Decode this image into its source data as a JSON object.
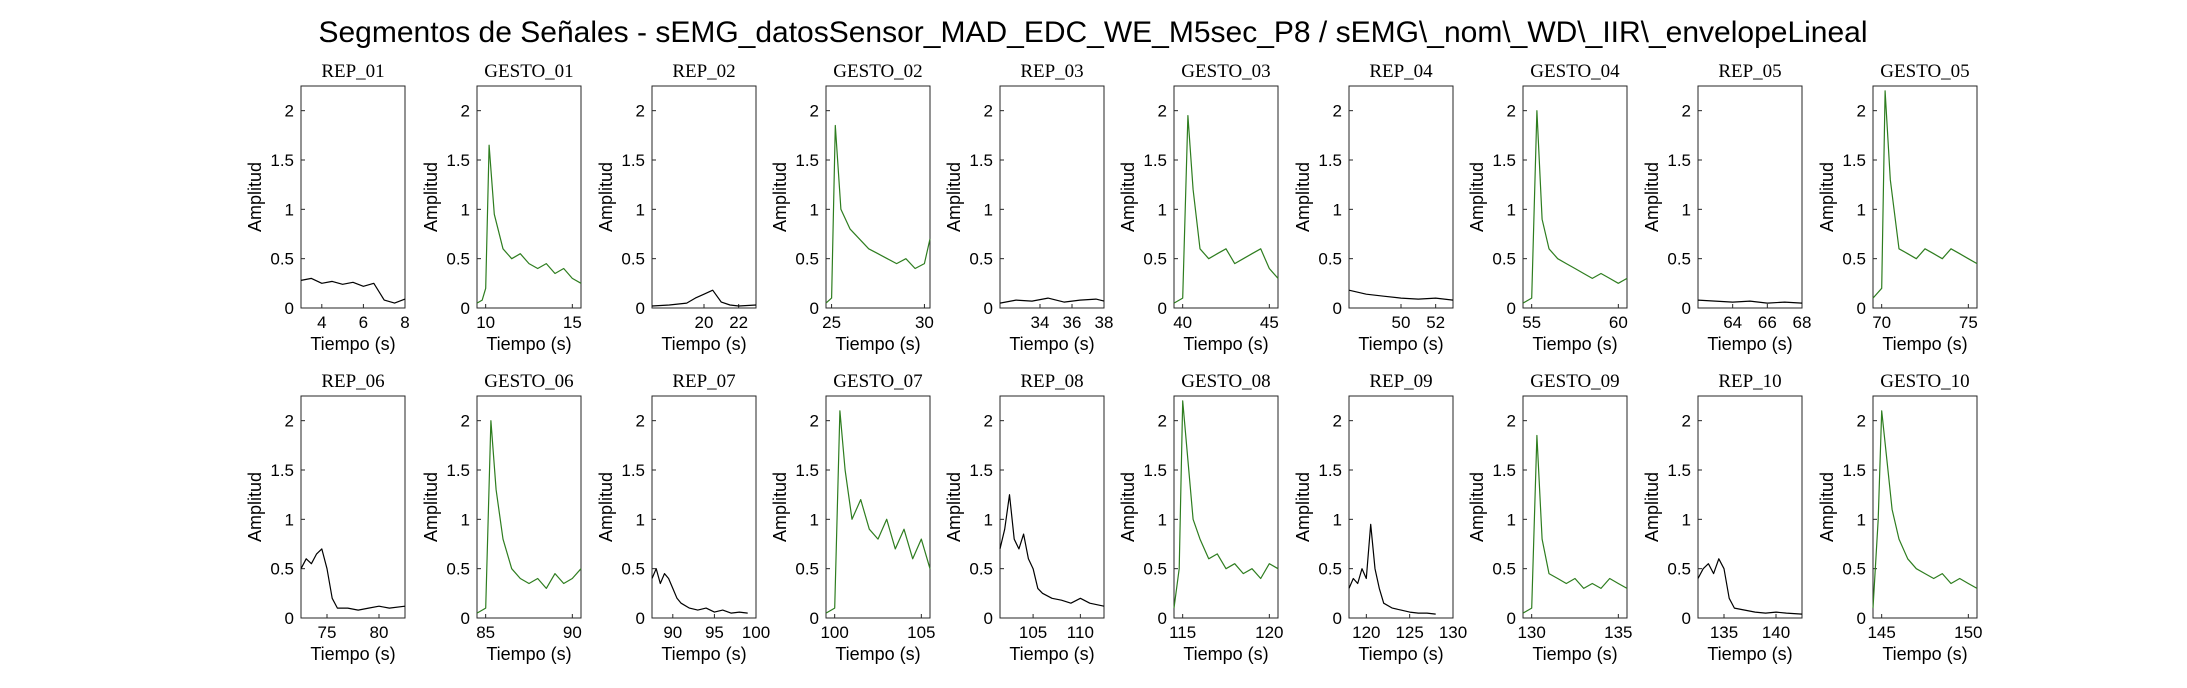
{
  "figure": {
    "title": "Segmentos de Señales - sEMG_datosSensor_MAD_EDC_WE_M5sec_P8 / sEMG\\_nom\\_WD\\_IIR\\_envelopeLineal"
  },
  "colors": {
    "rep": "#000000",
    "gesto": "#2e7d1f"
  },
  "chart_data": [
    {
      "type": "line",
      "title": "REP_01",
      "kind": "rep",
      "xlabel": "Tiempo (s)",
      "ylabel": "Amplitud",
      "xlim": [
        3,
        8
      ],
      "ylim": [
        0,
        2.25
      ],
      "xticks": [
        4,
        6,
        8
      ],
      "yticks": [
        0,
        0.5,
        1,
        1.5,
        2
      ],
      "ytick_labels": [
        "0",
        "0.5",
        "1",
        "1.5",
        "2"
      ],
      "x": [
        3,
        3.5,
        4,
        4.5,
        5,
        5.5,
        6,
        6.5,
        7,
        7.5,
        8
      ],
      "y": [
        0.28,
        0.3,
        0.25,
        0.27,
        0.24,
        0.26,
        0.22,
        0.25,
        0.08,
        0.05,
        0.09
      ]
    },
    {
      "type": "line",
      "title": "GESTO_01",
      "kind": "gesto",
      "xlabel": "Tiempo (s)",
      "ylabel": "Amplitud",
      "xlim": [
        9.5,
        15.5
      ],
      "ylim": [
        0,
        2.25
      ],
      "xticks": [
        10,
        15
      ],
      "yticks": [
        0,
        0.5,
        1,
        1.5,
        2
      ],
      "ytick_labels": [
        "0",
        "0.5",
        "1",
        "1.5",
        "2"
      ],
      "x": [
        9.5,
        9.8,
        10,
        10.2,
        10.5,
        11,
        11.5,
        12,
        12.5,
        13,
        13.5,
        14,
        14.5,
        15,
        15.5
      ],
      "y": [
        0.05,
        0.08,
        0.2,
        1.65,
        0.95,
        0.6,
        0.5,
        0.55,
        0.45,
        0.4,
        0.45,
        0.35,
        0.4,
        0.3,
        0.25
      ]
    },
    {
      "type": "line",
      "title": "REP_02",
      "kind": "rep",
      "xlabel": "Tiempo (s)",
      "ylabel": "Amplitud",
      "xlim": [
        17,
        23
      ],
      "ylim": [
        0,
        2.25
      ],
      "xticks": [
        20,
        22
      ],
      "yticks": [
        0,
        0.5,
        1,
        1.5,
        2
      ],
      "ytick_labels": [
        "0",
        "0.5",
        "1",
        "1.5",
        "2"
      ],
      "x": [
        17,
        18,
        19,
        19.5,
        20,
        20.5,
        21,
        21.5,
        22,
        23
      ],
      "y": [
        0.02,
        0.03,
        0.05,
        0.1,
        0.14,
        0.18,
        0.06,
        0.03,
        0.02,
        0.03
      ]
    },
    {
      "type": "line",
      "title": "GESTO_02",
      "kind": "gesto",
      "xlabel": "Tiempo (s)",
      "ylabel": "Amplitud",
      "xlim": [
        24.7,
        30.3
      ],
      "ylim": [
        0,
        2.25
      ],
      "xticks": [
        25,
        30
      ],
      "yticks": [
        0,
        0.5,
        1,
        1.5,
        2
      ],
      "ytick_labels": [
        "0",
        "0.5",
        "1",
        "1.5",
        "2"
      ],
      "x": [
        24.7,
        25,
        25.2,
        25.5,
        26,
        26.5,
        27,
        27.5,
        28,
        28.5,
        29,
        29.5,
        30,
        30.3
      ],
      "y": [
        0.05,
        0.1,
        1.85,
        1.0,
        0.8,
        0.7,
        0.6,
        0.55,
        0.5,
        0.45,
        0.5,
        0.4,
        0.45,
        0.7
      ]
    },
    {
      "type": "line",
      "title": "REP_03",
      "kind": "rep",
      "xlabel": "Tiempo (s)",
      "ylabel": "Amplitud",
      "xlim": [
        31.5,
        38
      ],
      "ylim": [
        0,
        2.25
      ],
      "xticks": [
        34,
        36,
        38
      ],
      "yticks": [
        0,
        0.5,
        1,
        1.5,
        2
      ],
      "ytick_labels": [
        "0",
        "0.5",
        "1",
        "1.5",
        "2"
      ],
      "x": [
        31.5,
        32.5,
        33.5,
        34.5,
        35.5,
        36.5,
        37.5,
        38
      ],
      "y": [
        0.05,
        0.08,
        0.07,
        0.1,
        0.06,
        0.08,
        0.09,
        0.07
      ]
    },
    {
      "type": "line",
      "title": "GESTO_03",
      "kind": "gesto",
      "xlabel": "Tiempo (s)",
      "ylabel": "Amplitud",
      "xlim": [
        39.5,
        45.5
      ],
      "ylim": [
        0,
        2.25
      ],
      "xticks": [
        40,
        45
      ],
      "yticks": [
        0,
        0.5,
        1,
        1.5,
        2
      ],
      "ytick_labels": [
        "0",
        "0.5",
        "1",
        "1.5",
        "2"
      ],
      "x": [
        39.5,
        40,
        40.3,
        40.6,
        41,
        41.5,
        42,
        42.5,
        43,
        43.5,
        44,
        44.5,
        45,
        45.5
      ],
      "y": [
        0.05,
        0.1,
        1.95,
        1.2,
        0.6,
        0.5,
        0.55,
        0.6,
        0.45,
        0.5,
        0.55,
        0.6,
        0.4,
        0.3
      ]
    },
    {
      "type": "line",
      "title": "REP_04",
      "kind": "rep",
      "xlabel": "Tiempo (s)",
      "ylabel": "Amplitud",
      "xlim": [
        47,
        53
      ],
      "ylim": [
        0,
        2.25
      ],
      "xticks": [
        50,
        52
      ],
      "yticks": [
        0,
        0.5,
        1,
        1.5,
        2
      ],
      "ytick_labels": [
        "0",
        "0.5",
        "1",
        "1.5",
        "2"
      ],
      "x": [
        47,
        48,
        49,
        50,
        51,
        52,
        53
      ],
      "y": [
        0.18,
        0.14,
        0.12,
        0.1,
        0.09,
        0.1,
        0.08
      ]
    },
    {
      "type": "line",
      "title": "GESTO_04",
      "kind": "gesto",
      "xlabel": "Tiempo (s)",
      "ylabel": "Amplitud",
      "xlim": [
        54.5,
        60.5
      ],
      "ylim": [
        0,
        2.25
      ],
      "xticks": [
        55,
        60
      ],
      "yticks": [
        0,
        0.5,
        1,
        1.5,
        2
      ],
      "ytick_labels": [
        "0",
        "0.5",
        "1",
        "1.5",
        "2"
      ],
      "x": [
        54.5,
        55,
        55.3,
        55.6,
        56,
        56.5,
        57,
        57.5,
        58,
        58.5,
        59,
        59.5,
        60,
        60.5
      ],
      "y": [
        0.05,
        0.1,
        2.0,
        0.9,
        0.6,
        0.5,
        0.45,
        0.4,
        0.35,
        0.3,
        0.35,
        0.3,
        0.25,
        0.3
      ]
    },
    {
      "type": "line",
      "title": "REP_05",
      "kind": "rep",
      "xlabel": "Tiempo (s)",
      "ylabel": "Amplitud",
      "xlim": [
        62,
        68
      ],
      "ylim": [
        0,
        2.25
      ],
      "xticks": [
        64,
        66,
        68
      ],
      "yticks": [
        0,
        0.5,
        1,
        1.5,
        2
      ],
      "ytick_labels": [
        "0",
        "0.5",
        "1",
        "1.5",
        "2"
      ],
      "x": [
        62,
        63,
        64,
        65,
        66,
        67,
        68
      ],
      "y": [
        0.08,
        0.07,
        0.06,
        0.07,
        0.05,
        0.06,
        0.05
      ]
    },
    {
      "type": "line",
      "title": "GESTO_05",
      "kind": "gesto",
      "xlabel": "Tiempo (s)",
      "ylabel": "Amplitud",
      "xlim": [
        69.5,
        75.5
      ],
      "ylim": [
        0,
        2.25
      ],
      "xticks": [
        70,
        75
      ],
      "yticks": [
        0,
        0.5,
        1,
        1.5,
        2
      ],
      "ytick_labels": [
        "0",
        "0.5",
        "1",
        "1.5",
        "2"
      ],
      "x": [
        69.5,
        70,
        70.2,
        70.5,
        71,
        71.5,
        72,
        72.5,
        73,
        73.5,
        74,
        74.5,
        75,
        75.5
      ],
      "y": [
        0.1,
        0.2,
        2.2,
        1.3,
        0.6,
        0.55,
        0.5,
        0.6,
        0.55,
        0.5,
        0.6,
        0.55,
        0.5,
        0.45
      ]
    },
    {
      "type": "line",
      "title": "REP_06",
      "kind": "rep",
      "xlabel": "Tiempo (s)",
      "ylabel": "Amplitud",
      "xlim": [
        72.5,
        82.5
      ],
      "ylim": [
        0,
        2.25
      ],
      "xticks": [
        75,
        80
      ],
      "yticks": [
        0,
        0.5,
        1,
        1.5,
        2
      ],
      "ytick_labels": [
        "0",
        "0.5",
        "1",
        "1.5",
        "2"
      ],
      "x": [
        72.5,
        73,
        73.5,
        74,
        74.5,
        75,
        75.5,
        76,
        77,
        78,
        79,
        80,
        81,
        82.5
      ],
      "y": [
        0.5,
        0.6,
        0.55,
        0.65,
        0.7,
        0.5,
        0.2,
        0.1,
        0.1,
        0.08,
        0.1,
        0.12,
        0.1,
        0.12
      ]
    },
    {
      "type": "line",
      "title": "GESTO_06",
      "kind": "gesto",
      "xlabel": "Tiempo (s)",
      "ylabel": "Amplitud",
      "xlim": [
        84.5,
        90.5
      ],
      "ylim": [
        0,
        2.25
      ],
      "xticks": [
        85,
        90
      ],
      "yticks": [
        0,
        0.5,
        1,
        1.5,
        2
      ],
      "ytick_labels": [
        "0",
        "0.5",
        "1",
        "1.5",
        "2"
      ],
      "x": [
        84.5,
        85,
        85.3,
        85.6,
        86,
        86.5,
        87,
        87.5,
        88,
        88.5,
        89,
        89.5,
        90,
        90.5
      ],
      "y": [
        0.05,
        0.1,
        2.0,
        1.3,
        0.8,
        0.5,
        0.4,
        0.35,
        0.4,
        0.3,
        0.45,
        0.35,
        0.4,
        0.5
      ]
    },
    {
      "type": "line",
      "title": "REP_07",
      "kind": "rep",
      "xlabel": "Tiempo (s)",
      "ylabel": "Amplitud",
      "xlim": [
        87.5,
        100
      ],
      "ylim": [
        0,
        2.25
      ],
      "xticks": [
        90,
        95,
        100
      ],
      "yticks": [
        0,
        0.5,
        1,
        1.5,
        2
      ],
      "ytick_labels": [
        "0",
        "0.5",
        "1",
        "1.5",
        "2"
      ],
      "x": [
        87.5,
        88,
        88.5,
        89,
        89.5,
        90,
        90.5,
        91,
        92,
        93,
        94,
        95,
        96,
        97,
        98,
        99
      ],
      "y": [
        0.4,
        0.5,
        0.35,
        0.45,
        0.4,
        0.3,
        0.2,
        0.15,
        0.1,
        0.08,
        0.1,
        0.06,
        0.08,
        0.05,
        0.06,
        0.05
      ]
    },
    {
      "type": "line",
      "title": "GESTO_07",
      "kind": "gesto",
      "xlabel": "Tiempo (s)",
      "ylabel": "Amplitud",
      "xlim": [
        99.5,
        105.5
      ],
      "ylim": [
        0,
        2.25
      ],
      "xticks": [
        100,
        105
      ],
      "yticks": [
        0,
        0.5,
        1,
        1.5,
        2
      ],
      "ytick_labels": [
        "0",
        "0.5",
        "1",
        "1.5",
        "2"
      ],
      "x": [
        99.5,
        100,
        100.3,
        100.6,
        101,
        101.5,
        102,
        102.5,
        103,
        103.5,
        104,
        104.5,
        105,
        105.5
      ],
      "y": [
        0.05,
        0.1,
        2.1,
        1.5,
        1.0,
        1.2,
        0.9,
        0.8,
        1.0,
        0.7,
        0.9,
        0.6,
        0.8,
        0.5
      ]
    },
    {
      "type": "line",
      "title": "REP_08",
      "kind": "rep",
      "xlabel": "Tiempo (s)",
      "ylabel": "Amplitud",
      "xlim": [
        101.5,
        112.5
      ],
      "ylim": [
        0,
        2.25
      ],
      "xticks": [
        105,
        110
      ],
      "yticks": [
        0,
        0.5,
        1,
        1.5,
        2
      ],
      "ytick_labels": [
        "0",
        "0.5",
        "1",
        "1.5",
        "2"
      ],
      "x": [
        101.5,
        102,
        102.5,
        103,
        103.5,
        104,
        104.5,
        105,
        105.5,
        106,
        107,
        108,
        109,
        110,
        111,
        112.5
      ],
      "y": [
        0.7,
        0.9,
        1.25,
        0.8,
        0.7,
        0.85,
        0.6,
        0.5,
        0.3,
        0.25,
        0.2,
        0.18,
        0.15,
        0.2,
        0.15,
        0.12
      ]
    },
    {
      "type": "line",
      "title": "GESTO_08",
      "kind": "gesto",
      "xlabel": "Tiempo (s)",
      "ylabel": "Amplitud",
      "xlim": [
        114.5,
        120.5
      ],
      "ylim": [
        0,
        2.25
      ],
      "xticks": [
        115,
        120
      ],
      "yticks": [
        0,
        0.5,
        1,
        1.5,
        2
      ],
      "ytick_labels": [
        "0",
        "0.5",
        "1",
        "1.5",
        "2"
      ],
      "x": [
        114.5,
        114.8,
        115,
        115.3,
        115.6,
        116,
        116.5,
        117,
        117.5,
        118,
        118.5,
        119,
        119.5,
        120,
        120.5
      ],
      "y": [
        0.1,
        0.5,
        2.2,
        1.6,
        1.0,
        0.8,
        0.6,
        0.65,
        0.5,
        0.55,
        0.45,
        0.5,
        0.4,
        0.55,
        0.5
      ]
    },
    {
      "type": "line",
      "title": "REP_09",
      "kind": "rep",
      "xlabel": "Tiempo (s)",
      "ylabel": "Amplitud",
      "xlim": [
        118,
        130
      ],
      "ylim": [
        0,
        2.25
      ],
      "xticks": [
        120,
        125,
        130
      ],
      "yticks": [
        0,
        0.5,
        1,
        1.5,
        2
      ],
      "ytick_labels": [
        "0",
        "0.5",
        "1",
        "1.5",
        "2"
      ],
      "x": [
        118,
        118.5,
        119,
        119.5,
        120,
        120.5,
        121,
        121.5,
        122,
        123,
        124,
        125,
        126,
        127,
        128
      ],
      "y": [
        0.3,
        0.4,
        0.35,
        0.5,
        0.4,
        0.95,
        0.5,
        0.3,
        0.15,
        0.1,
        0.08,
        0.06,
        0.05,
        0.05,
        0.04
      ]
    },
    {
      "type": "line",
      "title": "GESTO_09",
      "kind": "gesto",
      "xlabel": "Tiempo (s)",
      "ylabel": "Amplitud",
      "xlim": [
        129.5,
        135.5
      ],
      "ylim": [
        0,
        2.25
      ],
      "xticks": [
        130,
        135
      ],
      "yticks": [
        0,
        0.5,
        1,
        1.5,
        2
      ],
      "ytick_labels": [
        "0",
        "0.5",
        "1",
        "1.5",
        "2"
      ],
      "x": [
        129.5,
        130,
        130.3,
        130.6,
        131,
        131.5,
        132,
        132.5,
        133,
        133.5,
        134,
        134.5,
        135,
        135.5
      ],
      "y": [
        0.05,
        0.1,
        1.85,
        0.8,
        0.45,
        0.4,
        0.35,
        0.4,
        0.3,
        0.35,
        0.3,
        0.4,
        0.35,
        0.3
      ]
    },
    {
      "type": "line",
      "title": "REP_10",
      "kind": "rep",
      "xlabel": "Tiempo (s)",
      "ylabel": "Amplitud",
      "xlim": [
        132.5,
        142.5
      ],
      "ylim": [
        0,
        2.25
      ],
      "xticks": [
        135,
        140
      ],
      "yticks": [
        0,
        0.5,
        1,
        1.5,
        2
      ],
      "ytick_labels": [
        "0",
        "0.5",
        "1",
        "1.5",
        "2"
      ],
      "x": [
        132.5,
        133,
        133.5,
        134,
        134.5,
        135,
        135.5,
        136,
        137,
        138,
        139,
        140,
        141,
        142.5
      ],
      "y": [
        0.4,
        0.5,
        0.55,
        0.45,
        0.6,
        0.5,
        0.2,
        0.1,
        0.08,
        0.06,
        0.05,
        0.06,
        0.05,
        0.04
      ]
    },
    {
      "type": "line",
      "title": "GESTO_10",
      "kind": "gesto",
      "xlabel": "Tiempo (s)",
      "ylabel": "Amplitud",
      "xlim": [
        144.5,
        150.5
      ],
      "ylim": [
        0,
        2.25
      ],
      "xticks": [
        145,
        150
      ],
      "yticks": [
        0,
        0.5,
        1,
        1.5,
        2
      ],
      "ytick_labels": [
        "0",
        "0.5",
        "1",
        "1.5",
        "2"
      ],
      "x": [
        144.5,
        144.8,
        145,
        145.3,
        145.6,
        146,
        146.5,
        147,
        147.5,
        148,
        148.5,
        149,
        149.5,
        150,
        150.5
      ],
      "y": [
        0.1,
        1.0,
        2.1,
        1.6,
        1.1,
        0.8,
        0.6,
        0.5,
        0.45,
        0.4,
        0.45,
        0.35,
        0.4,
        0.35,
        0.3
      ]
    }
  ]
}
